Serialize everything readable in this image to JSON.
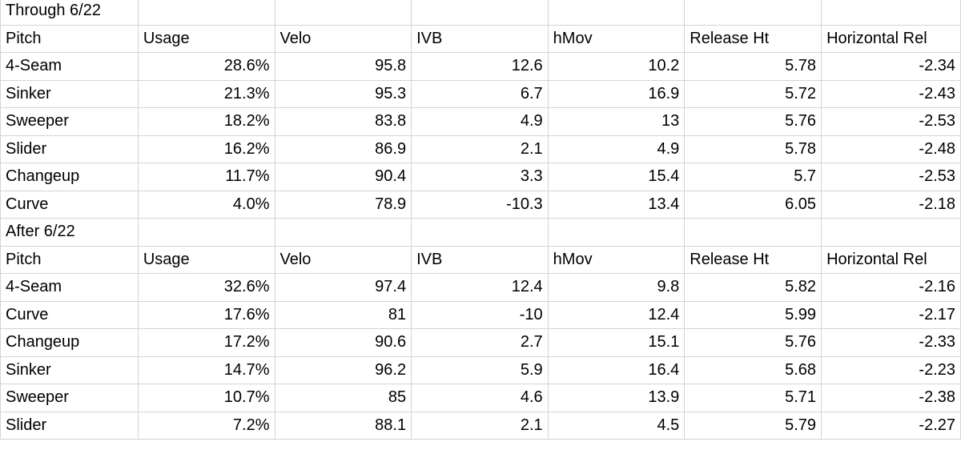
{
  "sections": [
    {
      "title": "Through 6/22",
      "headers": [
        "Pitch",
        "Usage",
        "Velo",
        "IVB",
        "hMov",
        "Release Ht",
        "Horizontal Rel"
      ],
      "rows": [
        [
          "4-Seam",
          "28.6%",
          "95.8",
          "12.6",
          "10.2",
          "5.78",
          "-2.34"
        ],
        [
          "Sinker",
          "21.3%",
          "95.3",
          "6.7",
          "16.9",
          "5.72",
          "-2.43"
        ],
        [
          "Sweeper",
          "18.2%",
          "83.8",
          "4.9",
          "13",
          "5.76",
          "-2.53"
        ],
        [
          "Slider",
          "16.2%",
          "86.9",
          "2.1",
          "4.9",
          "5.78",
          "-2.48"
        ],
        [
          "Changeup",
          "11.7%",
          "90.4",
          "3.3",
          "15.4",
          "5.7",
          "-2.53"
        ],
        [
          "Curve",
          "4.0%",
          "78.9",
          "-10.3",
          "13.4",
          "6.05",
          "-2.18"
        ]
      ]
    },
    {
      "title": "After 6/22",
      "headers": [
        "Pitch",
        "Usage",
        "Velo",
        "IVB",
        "hMov",
        "Release Ht",
        "Horizontal Rel"
      ],
      "rows": [
        [
          "4-Seam",
          "32.6%",
          "97.4",
          "12.4",
          "9.8",
          "5.82",
          "-2.16"
        ],
        [
          "Curve",
          "17.6%",
          "81",
          "-10",
          "12.4",
          "5.99",
          "-2.17"
        ],
        [
          "Changeup",
          "17.2%",
          "90.6",
          "2.7",
          "15.1",
          "5.76",
          "-2.33"
        ],
        [
          "Sinker",
          "14.7%",
          "96.2",
          "5.9",
          "16.4",
          "5.68",
          "-2.23"
        ],
        [
          "Sweeper",
          "10.7%",
          "85",
          "4.6",
          "13.9",
          "5.71",
          "-2.38"
        ],
        [
          "Slider",
          "7.2%",
          "88.1",
          "2.1",
          "4.5",
          "5.79",
          "-2.27"
        ]
      ]
    }
  ]
}
